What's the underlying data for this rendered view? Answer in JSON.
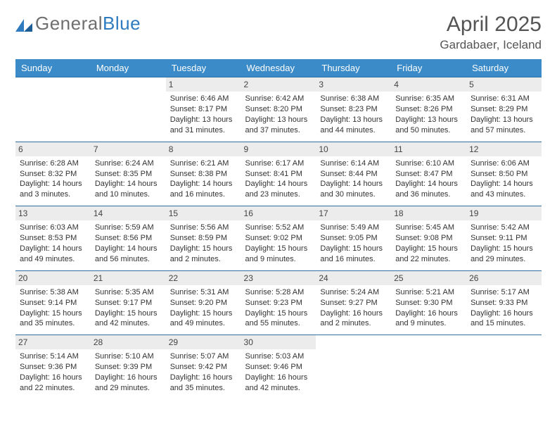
{
  "logo": {
    "text_gray": "General",
    "text_blue": "Blue"
  },
  "header": {
    "month": "April 2025",
    "location": "Gardabaer, Iceland"
  },
  "style": {
    "header_bg": "#3b8bc9",
    "header_text": "#ffffff",
    "daynum_bg": "#ececec",
    "border_color": "#2f6ea3",
    "body_font_size": 11,
    "title_color": "#555"
  },
  "daynames": [
    "Sunday",
    "Monday",
    "Tuesday",
    "Wednesday",
    "Thursday",
    "Friday",
    "Saturday"
  ],
  "weeks": [
    [
      null,
      null,
      {
        "n": "1",
        "sr": "Sunrise: 6:46 AM",
        "ss": "Sunset: 8:17 PM",
        "dl": "Daylight: 13 hours and 31 minutes."
      },
      {
        "n": "2",
        "sr": "Sunrise: 6:42 AM",
        "ss": "Sunset: 8:20 PM",
        "dl": "Daylight: 13 hours and 37 minutes."
      },
      {
        "n": "3",
        "sr": "Sunrise: 6:38 AM",
        "ss": "Sunset: 8:23 PM",
        "dl": "Daylight: 13 hours and 44 minutes."
      },
      {
        "n": "4",
        "sr": "Sunrise: 6:35 AM",
        "ss": "Sunset: 8:26 PM",
        "dl": "Daylight: 13 hours and 50 minutes."
      },
      {
        "n": "5",
        "sr": "Sunrise: 6:31 AM",
        "ss": "Sunset: 8:29 PM",
        "dl": "Daylight: 13 hours and 57 minutes."
      }
    ],
    [
      {
        "n": "6",
        "sr": "Sunrise: 6:28 AM",
        "ss": "Sunset: 8:32 PM",
        "dl": "Daylight: 14 hours and 3 minutes."
      },
      {
        "n": "7",
        "sr": "Sunrise: 6:24 AM",
        "ss": "Sunset: 8:35 PM",
        "dl": "Daylight: 14 hours and 10 minutes."
      },
      {
        "n": "8",
        "sr": "Sunrise: 6:21 AM",
        "ss": "Sunset: 8:38 PM",
        "dl": "Daylight: 14 hours and 16 minutes."
      },
      {
        "n": "9",
        "sr": "Sunrise: 6:17 AM",
        "ss": "Sunset: 8:41 PM",
        "dl": "Daylight: 14 hours and 23 minutes."
      },
      {
        "n": "10",
        "sr": "Sunrise: 6:14 AM",
        "ss": "Sunset: 8:44 PM",
        "dl": "Daylight: 14 hours and 30 minutes."
      },
      {
        "n": "11",
        "sr": "Sunrise: 6:10 AM",
        "ss": "Sunset: 8:47 PM",
        "dl": "Daylight: 14 hours and 36 minutes."
      },
      {
        "n": "12",
        "sr": "Sunrise: 6:06 AM",
        "ss": "Sunset: 8:50 PM",
        "dl": "Daylight: 14 hours and 43 minutes."
      }
    ],
    [
      {
        "n": "13",
        "sr": "Sunrise: 6:03 AM",
        "ss": "Sunset: 8:53 PM",
        "dl": "Daylight: 14 hours and 49 minutes."
      },
      {
        "n": "14",
        "sr": "Sunrise: 5:59 AM",
        "ss": "Sunset: 8:56 PM",
        "dl": "Daylight: 14 hours and 56 minutes."
      },
      {
        "n": "15",
        "sr": "Sunrise: 5:56 AM",
        "ss": "Sunset: 8:59 PM",
        "dl": "Daylight: 15 hours and 2 minutes."
      },
      {
        "n": "16",
        "sr": "Sunrise: 5:52 AM",
        "ss": "Sunset: 9:02 PM",
        "dl": "Daylight: 15 hours and 9 minutes."
      },
      {
        "n": "17",
        "sr": "Sunrise: 5:49 AM",
        "ss": "Sunset: 9:05 PM",
        "dl": "Daylight: 15 hours and 16 minutes."
      },
      {
        "n": "18",
        "sr": "Sunrise: 5:45 AM",
        "ss": "Sunset: 9:08 PM",
        "dl": "Daylight: 15 hours and 22 minutes."
      },
      {
        "n": "19",
        "sr": "Sunrise: 5:42 AM",
        "ss": "Sunset: 9:11 PM",
        "dl": "Daylight: 15 hours and 29 minutes."
      }
    ],
    [
      {
        "n": "20",
        "sr": "Sunrise: 5:38 AM",
        "ss": "Sunset: 9:14 PM",
        "dl": "Daylight: 15 hours and 35 minutes."
      },
      {
        "n": "21",
        "sr": "Sunrise: 5:35 AM",
        "ss": "Sunset: 9:17 PM",
        "dl": "Daylight: 15 hours and 42 minutes."
      },
      {
        "n": "22",
        "sr": "Sunrise: 5:31 AM",
        "ss": "Sunset: 9:20 PM",
        "dl": "Daylight: 15 hours and 49 minutes."
      },
      {
        "n": "23",
        "sr": "Sunrise: 5:28 AM",
        "ss": "Sunset: 9:23 PM",
        "dl": "Daylight: 15 hours and 55 minutes."
      },
      {
        "n": "24",
        "sr": "Sunrise: 5:24 AM",
        "ss": "Sunset: 9:27 PM",
        "dl": "Daylight: 16 hours and 2 minutes."
      },
      {
        "n": "25",
        "sr": "Sunrise: 5:21 AM",
        "ss": "Sunset: 9:30 PM",
        "dl": "Daylight: 16 hours and 9 minutes."
      },
      {
        "n": "26",
        "sr": "Sunrise: 5:17 AM",
        "ss": "Sunset: 9:33 PM",
        "dl": "Daylight: 16 hours and 15 minutes."
      }
    ],
    [
      {
        "n": "27",
        "sr": "Sunrise: 5:14 AM",
        "ss": "Sunset: 9:36 PM",
        "dl": "Daylight: 16 hours and 22 minutes."
      },
      {
        "n": "28",
        "sr": "Sunrise: 5:10 AM",
        "ss": "Sunset: 9:39 PM",
        "dl": "Daylight: 16 hours and 29 minutes."
      },
      {
        "n": "29",
        "sr": "Sunrise: 5:07 AM",
        "ss": "Sunset: 9:42 PM",
        "dl": "Daylight: 16 hours and 35 minutes."
      },
      {
        "n": "30",
        "sr": "Sunrise: 5:03 AM",
        "ss": "Sunset: 9:46 PM",
        "dl": "Daylight: 16 hours and 42 minutes."
      },
      null,
      null,
      null
    ]
  ]
}
